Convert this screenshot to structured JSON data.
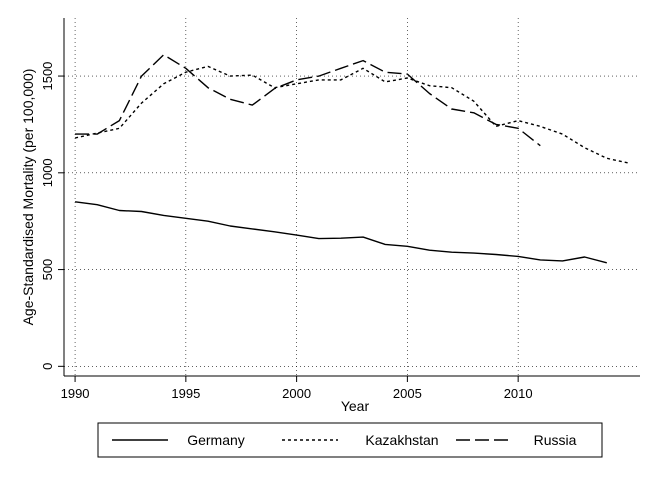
{
  "chart_data": {
    "type": "line",
    "title": "",
    "xlabel": "Year",
    "ylabel": "Age-Standardised Mortality (per 100,000)",
    "xlim": [
      1989.5,
      2015.5
    ],
    "ylim": [
      -50,
      1800
    ],
    "xticks": [
      1990,
      1995,
      2000,
      2005,
      2010
    ],
    "yticks": [
      0,
      500,
      1000,
      1500
    ],
    "grid": true,
    "legend_position": "bottom",
    "series": [
      {
        "name": "Germany",
        "dash": "solid",
        "x": [
          1990,
          1991,
          1992,
          1993,
          1994,
          1995,
          1996,
          1997,
          1998,
          1999,
          2000,
          2001,
          2002,
          2003,
          2004,
          2005,
          2006,
          2007,
          2008,
          2009,
          2010,
          2011,
          2012,
          2013,
          2014
        ],
        "y": [
          850,
          835,
          805,
          800,
          780,
          765,
          750,
          725,
          710,
          695,
          678,
          660,
          662,
          668,
          630,
          620,
          600,
          590,
          585,
          578,
          568,
          550,
          545,
          565,
          535
        ]
      },
      {
        "name": "Kazakhstan",
        "dash": "dotted",
        "x": [
          1990,
          1991,
          1992,
          1993,
          1994,
          1995,
          1996,
          1997,
          1998,
          1999,
          2000,
          2001,
          2002,
          2003,
          2004,
          2005,
          2006,
          2007,
          2008,
          2009,
          2010,
          2011,
          2012,
          2013,
          2014,
          2015
        ],
        "y": [
          1180,
          1205,
          1230,
          1360,
          1460,
          1520,
          1550,
          1500,
          1505,
          1440,
          1460,
          1480,
          1480,
          1540,
          1470,
          1490,
          1450,
          1440,
          1370,
          1240,
          1270,
          1240,
          1200,
          1130,
          1075,
          1050
        ]
      },
      {
        "name": "Russia",
        "dash": "dashed",
        "x": [
          1990,
          1991,
          1992,
          1993,
          1994,
          1995,
          1996,
          1997,
          1998,
          1999,
          2000,
          2001,
          2002,
          2003,
          2004,
          2005,
          2006,
          2007,
          2008,
          2009,
          2010,
          2011
        ],
        "y": [
          1200,
          1200,
          1270,
          1500,
          1610,
          1540,
          1440,
          1380,
          1350,
          1435,
          1480,
          1500,
          1540,
          1580,
          1520,
          1510,
          1410,
          1330,
          1310,
          1250,
          1230,
          1140
        ]
      }
    ]
  }
}
